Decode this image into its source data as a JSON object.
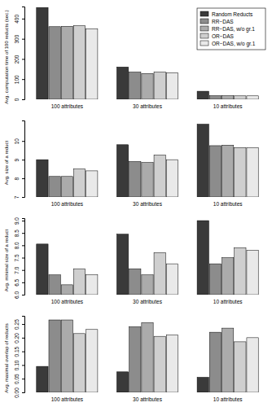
{
  "chart_data": [
    {
      "type": "bar",
      "y_label": "Avg. computation time of 100 reducts (sec.)",
      "categories": [
        "100 attributes",
        "30 attributes",
        "10 attributes"
      ],
      "series": [
        {
          "name": "Random Reducts",
          "color": "#3a3a3a",
          "values": [
            455,
            160,
            40
          ]
        },
        {
          "name": "RR−DAS",
          "color": "#8c8c8c",
          "values": [
            360,
            135,
            18
          ]
        },
        {
          "name": "RR−DAS, w/o gr.1",
          "color": "#ababab",
          "values": [
            362,
            128,
            18
          ]
        },
        {
          "name": "OR−DAS",
          "color": "#cfcfcf",
          "values": [
            365,
            135,
            17
          ]
        },
        {
          "name": "OR−DAS, w/o gr.1",
          "color": "#e9e9e9",
          "values": [
            350,
            132,
            17
          ]
        }
      ],
      "ylim": [
        0,
        460
      ],
      "yticks": [
        0,
        100,
        200,
        300,
        400
      ],
      "legend": "top-right"
    },
    {
      "type": "bar",
      "y_label": "Avg. size of a reduct",
      "categories": [
        "100 attributes",
        "30 attributes",
        "10 attributes"
      ],
      "series": [
        {
          "color": "#3a3a3a",
          "values": [
            9.0,
            9.8,
            10.9
          ]
        },
        {
          "color": "#8c8c8c",
          "values": [
            8.1,
            8.9,
            9.75
          ]
        },
        {
          "color": "#ababab",
          "values": [
            8.1,
            8.85,
            9.78
          ]
        },
        {
          "color": "#cfcfcf",
          "values": [
            8.5,
            9.25,
            9.65
          ]
        },
        {
          "color": "#e9e9e9",
          "values": [
            8.4,
            9.0,
            9.65
          ]
        }
      ],
      "ylim": [
        7,
        11.1
      ],
      "yticks": [
        7,
        8,
        9,
        10
      ]
    },
    {
      "type": "bar",
      "y_label": "Avg. minimal size of a reduct",
      "categories": [
        "100 attributes",
        "30 attributes",
        "10 attributes"
      ],
      "series": [
        {
          "color": "#3a3a3a",
          "values": [
            8.05,
            8.45,
            9.0
          ]
        },
        {
          "color": "#8c8c8c",
          "values": [
            6.8,
            7.05,
            7.25
          ]
        },
        {
          "color": "#ababab",
          "values": [
            6.4,
            6.8,
            7.5
          ]
        },
        {
          "color": "#cfcfcf",
          "values": [
            7.05,
            7.7,
            7.9
          ]
        },
        {
          "color": "#e9e9e9",
          "values": [
            6.8,
            7.25,
            7.8
          ]
        }
      ],
      "ylim": [
        6,
        9.1
      ],
      "yticks": [
        {
          "value": 6,
          "label": "6.0"
        },
        6.5,
        {
          "value": 7,
          "label": "7.0"
        },
        7.5,
        {
          "value": 8,
          "label": "8.0"
        },
        8.5,
        {
          "value": 9,
          "label": "9.0"
        }
      ]
    },
    {
      "type": "bar",
      "y_label": "Avg. maximal overlap of reducts",
      "categories": [
        "100 attributes",
        "30 attributes",
        "10 attributes"
      ],
      "series": [
        {
          "color": "#3a3a3a",
          "values": [
            0.095,
            0.075,
            0.055
          ]
        },
        {
          "color": "#8c8c8c",
          "values": [
            0.265,
            0.24,
            0.22
          ]
        },
        {
          "color": "#ababab",
          "values": [
            0.265,
            0.255,
            0.235
          ]
        },
        {
          "color": "#cfcfcf",
          "values": [
            0.215,
            0.205,
            0.185
          ]
        },
        {
          "color": "#e9e9e9",
          "values": [
            0.23,
            0.21,
            0.2
          ]
        }
      ],
      "ylim": [
        0,
        0.28
      ],
      "yticks": [
        {
          "value": 0,
          "label": "0.00"
        },
        {
          "value": 0.05,
          "label": "0.05"
        },
        {
          "value": 0.1,
          "label": "0.10"
        },
        {
          "value": 0.15,
          "label": "0.15"
        },
        {
          "value": 0.2,
          "label": "0.20"
        },
        {
          "value": 0.25,
          "label": "0.25"
        }
      ]
    }
  ]
}
